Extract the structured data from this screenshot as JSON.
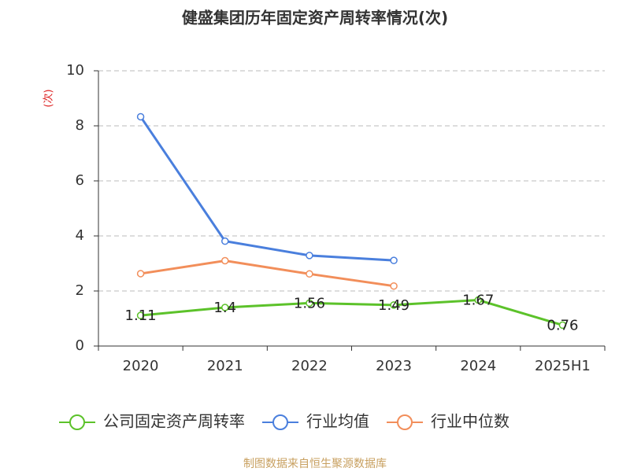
{
  "chart_data": {
    "type": "line",
    "title": "健盛集团历年固定资产周转率情况(次)",
    "y_label": "(次)",
    "categories": [
      "2020",
      "2021",
      "2022",
      "2023",
      "2024",
      "2025H1"
    ],
    "series": [
      {
        "name": "公司固定资产周转率",
        "color": "#5cc22a",
        "values": [
          1.11,
          1.4,
          1.56,
          1.49,
          1.67,
          0.76
        ],
        "labels": true
      },
      {
        "name": "行业均值",
        "color": "#4a7fdd",
        "values": [
          8.33,
          3.81,
          3.29,
          3.11,
          null,
          null
        ]
      },
      {
        "name": "行业中位数",
        "color": "#f28e5a",
        "values": [
          2.63,
          3.1,
          2.62,
          2.18,
          null,
          null
        ]
      }
    ],
    "ylim": [
      0,
      10
    ],
    "yticks": [
      0,
      2,
      4,
      6,
      8,
      10
    ],
    "grid": true,
    "source": "制图数据来自恒生聚源数据库"
  }
}
